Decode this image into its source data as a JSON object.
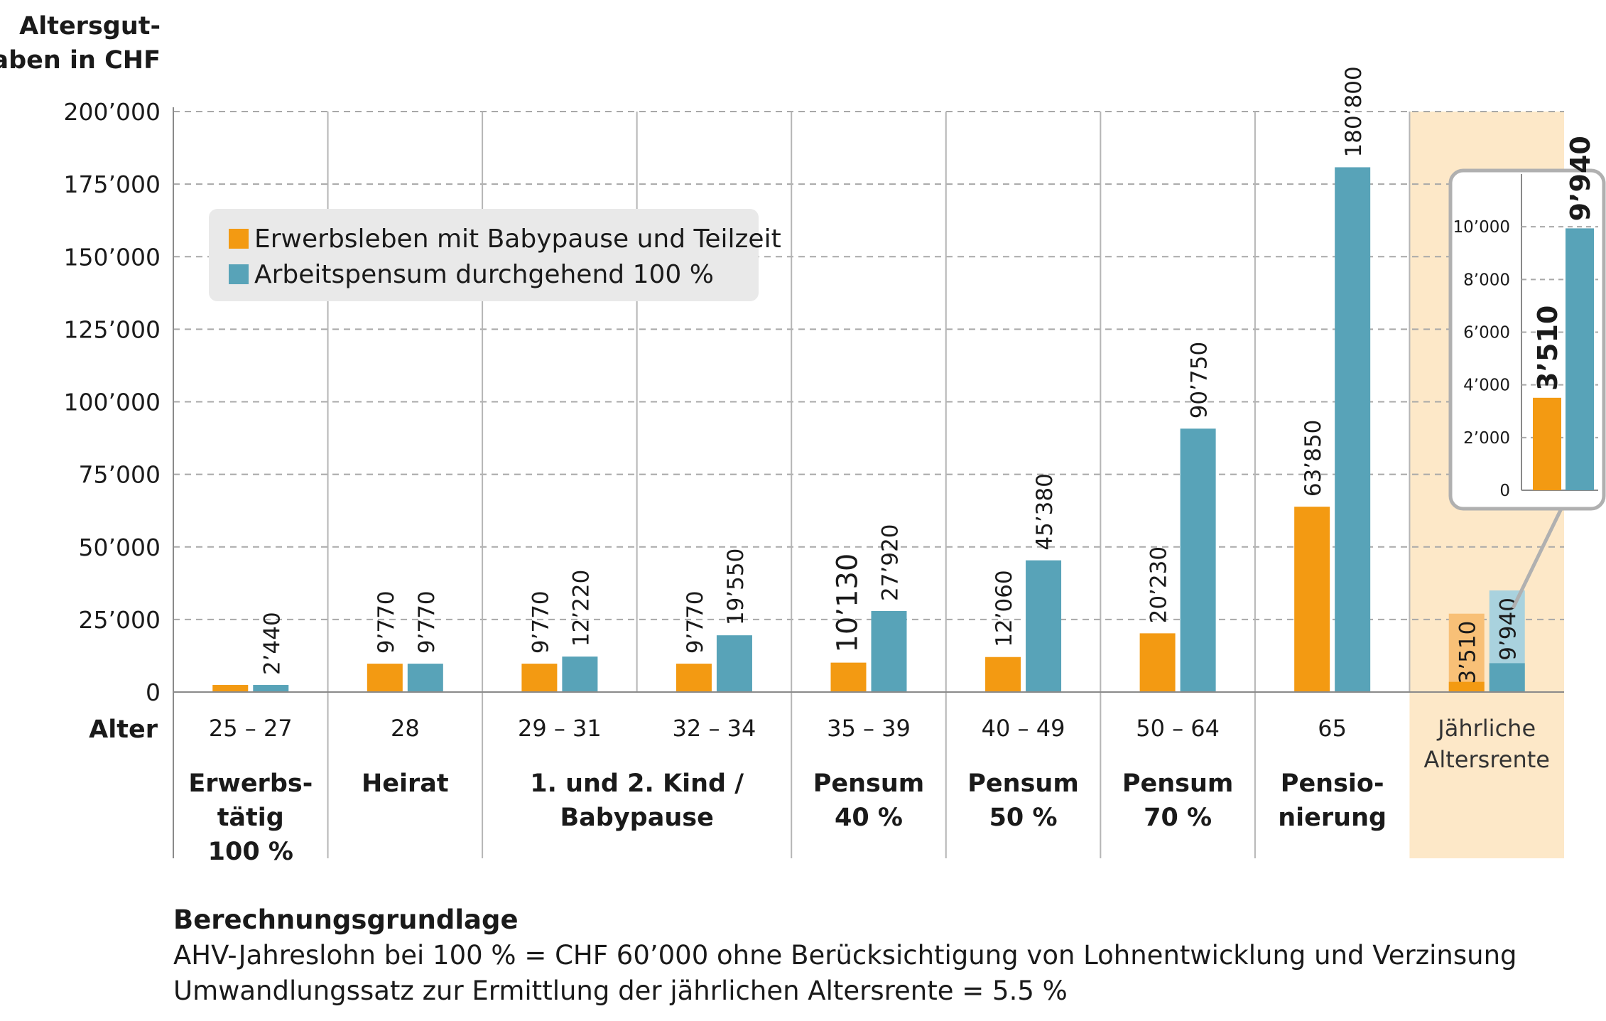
{
  "chart_data": {
    "type": "bar",
    "ylabel": "Altersgut-\nhaben in CHF",
    "ylim": [
      0,
      200000
    ],
    "yticks": [
      0,
      25000,
      50000,
      75000,
      100000,
      125000,
      150000,
      175000,
      200000
    ],
    "ytick_labels": [
      "0",
      "25’000",
      "50’000",
      "75’000",
      "100’000",
      "125’000",
      "150’000",
      "175’000",
      "200’000"
    ],
    "grid": true,
    "xaxis_label": "Alter",
    "legend_position": "top-left",
    "series": [
      {
        "name": "Erwerbsleben mit Babypause und Teilzeit",
        "color": "#f39a12",
        "values": [
          2440,
          9770,
          9770,
          9770,
          10130,
          12060,
          20230,
          63850,
          3510
        ],
        "value_labels": [
          "",
          "9’770",
          "9’770",
          "9’770",
          "10’130",
          "12’060",
          "20’230",
          "63’850",
          "3’510"
        ]
      },
      {
        "name": "Arbeitspensum durchgehend 100 %",
        "color": "#58a3b8",
        "values": [
          2440,
          9770,
          12220,
          19550,
          27920,
          45380,
          90750,
          180800,
          9940
        ],
        "value_labels": [
          "2’440",
          "9’770",
          "12’220",
          "19’550",
          "27’920",
          "45’380",
          "90’750",
          "180’800",
          "9’940"
        ]
      }
    ],
    "categories": [
      "25 – 27",
      "28",
      "29 – 31",
      "32 – 34",
      "35 – 39",
      "40 – 49",
      "50 – 64",
      "65",
      "Jährliche\nAltersrente"
    ],
    "phases": [
      {
        "label": "Erwerbs-\ntätig\n100 %",
        "span": [
          0,
          0
        ]
      },
      {
        "label": "Heirat",
        "span": [
          1,
          1
        ]
      },
      {
        "label": "1. und 2. Kind /\nBabypause",
        "span": [
          2,
          3
        ]
      },
      {
        "label": "Pensum\n40 %",
        "span": [
          4,
          4
        ]
      },
      {
        "label": "Pensum\n50 %",
        "span": [
          5,
          5
        ]
      },
      {
        "label": "Pensum\n70 %",
        "span": [
          6,
          6
        ]
      },
      {
        "label": "Pensio-\nnierung",
        "span": [
          7,
          7
        ]
      }
    ],
    "highlight_color": "#fde8c8",
    "inset": {
      "ylim": [
        0,
        12000
      ],
      "yticks": [
        0,
        2000,
        4000,
        6000,
        8000,
        10000
      ],
      "ytick_labels": [
        "0",
        "2’000",
        "4’000",
        "6’000",
        "8’000",
        "10’000"
      ],
      "values": [
        3510,
        9940
      ],
      "value_labels": [
        "3’510",
        "9’940"
      ]
    }
  },
  "footnote": {
    "title": "Berechnungsgrundlage",
    "line1": "AHV-Jahreslohn bei 100 % = CHF 60’000 ohne Berücksichtigung von Lohnentwicklung und Verzinsung",
    "line2": "Umwandlungssatz zur Ermittlung der jährlichen Altersrente = 5.5 %"
  }
}
